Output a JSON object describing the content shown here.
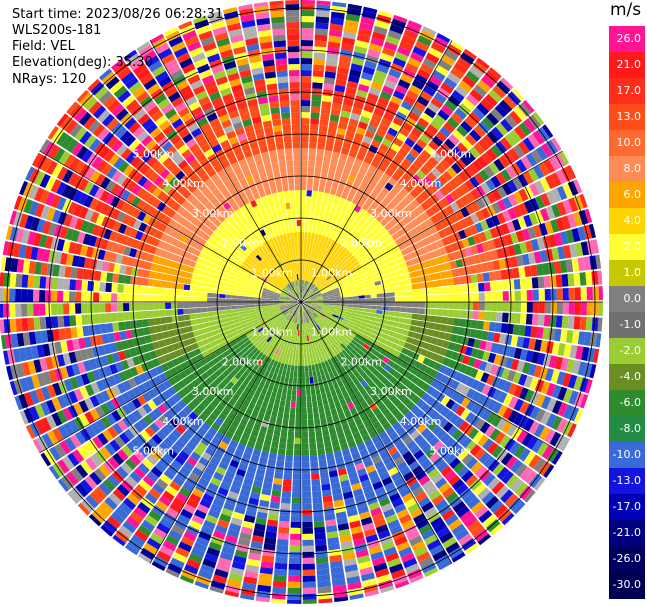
{
  "header": {
    "start_time": "Start time: 2023/08/26 06:28:31",
    "instrument": "WLS200s-181",
    "field": "Field: VEL",
    "elevation": "Elevation(deg): 35.30",
    "nrays": "NRays: 120"
  },
  "range_labels": [
    "1.00km",
    "2.00km",
    "3.00km",
    "4.00km",
    "5.00km"
  ],
  "colorbar": {
    "unit": "m/s",
    "ticks": [
      "26.0",
      "21.0",
      "17.0",
      "13.0",
      "10.0",
      "8.0",
      "6.0",
      "4.0",
      "2.0",
      "1.0",
      "0.0",
      "-1.0",
      "-2.0",
      "-4.0",
      "-6.0",
      "-8.0",
      "-10.0",
      "-13.0",
      "-17.0",
      "-21.0",
      "-26.0",
      "-30.0"
    ],
    "colors": [
      "#ff1493",
      "#ff1a1a",
      "#ff2e1a",
      "#ff4d1a",
      "#ff6a33",
      "#ff8c55",
      "#ffa500",
      "#ffd400",
      "#ffff33",
      "#c8c800",
      "#808080",
      "#707070",
      "#9acd32",
      "#6b8e23",
      "#2e8b2e",
      "#228b44",
      "#3a6ad8",
      "#1414e0",
      "#0000b4",
      "#000080",
      "#000060",
      "#000050"
    ]
  }
}
